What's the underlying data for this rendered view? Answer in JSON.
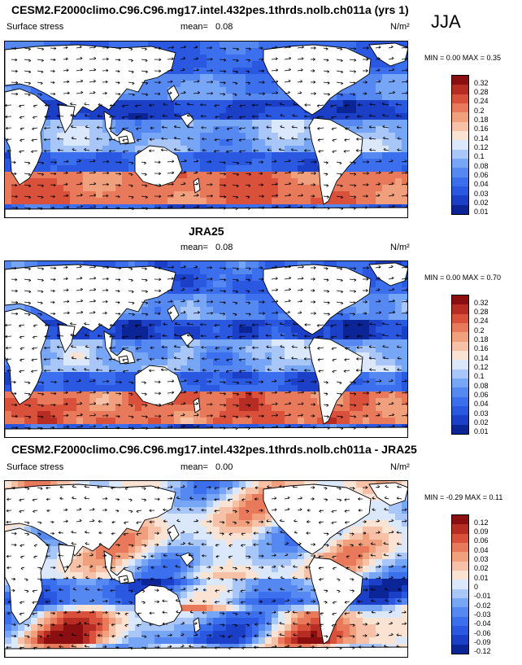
{
  "season": "JJA",
  "panels": [
    {
      "id": "model",
      "title": "CESM2.F2000climo.C96.C96.mg17.intel.432pes.1thrds.nolb.ch011a (yrs 1)",
      "variable": "Surface stress",
      "mean_label": "mean=",
      "mean_value": "0.08",
      "units": "N/m²",
      "minmax": "MIN =   0.00 MAX =   0.35"
    },
    {
      "id": "obs",
      "title": "JRA25",
      "variable": "",
      "mean_label": "mean=",
      "mean_value": "0.08",
      "units": "N/m²",
      "minmax": "MIN =   0.00 MAX =   0.70"
    },
    {
      "id": "diff",
      "title": "CESM2.F2000climo.C96.C96.mg17.intel.432pes.1thrds.nolb.ch011a - JRA25",
      "variable": "Surface stress",
      "mean_label": "mean=",
      "mean_value": "0.00",
      "units": "N/m²",
      "minmax": "MIN = -0.29 MAX =  0.11"
    }
  ],
  "chart_data": [
    {
      "type": "heatmap",
      "title": "CESM2.F2000climo.C96.C96.mg17.intel.432pes.1thrds.nolb.ch011a (yrs 1)",
      "subtitle": "Surface stress",
      "units": "N/m2",
      "mean": 0.08,
      "min": 0.0,
      "max": 0.35,
      "levels": [
        "0.01",
        "0.02",
        "0.03",
        "0.04",
        "0.06",
        "0.08",
        "0.1",
        "0.12",
        "0.14",
        "0.16",
        "0.18",
        "0.2",
        "0.24",
        "0.28",
        "0.32"
      ]
    },
    {
      "type": "heatmap",
      "title": "JRA25",
      "subtitle": "Surface stress",
      "units": "N/m2",
      "mean": 0.08,
      "min": 0.0,
      "max": 0.7,
      "levels": [
        "0.01",
        "0.02",
        "0.03",
        "0.04",
        "0.06",
        "0.08",
        "0.1",
        "0.12",
        "0.14",
        "0.16",
        "0.18",
        "0.2",
        "0.24",
        "0.28",
        "0.32"
      ]
    },
    {
      "type": "heatmap",
      "title": "CESM2.F2000climo.C96.C96.mg17.intel.432pes.1thrds.nolb.ch011a - JRA25",
      "subtitle": "Surface stress",
      "units": "N/m2",
      "mean": 0.0,
      "min": -0.29,
      "max": 0.11,
      "levels": [
        "-0.12",
        "-0.09",
        "-0.06",
        "-0.04",
        "-0.03",
        "-0.02",
        "-0.01",
        "0",
        "0.01",
        "0.02",
        "0.03",
        "0.04",
        "0.06",
        "0.09",
        "0.12"
      ]
    }
  ],
  "colors": {
    "scale": [
      "#0b2496",
      "#1b3fc6",
      "#2a58e0",
      "#3c6fee",
      "#5688f2",
      "#78a6f6",
      "#a8c6f8",
      "#dbe7fb",
      "#fbe3d3",
      "#f6c1a6",
      "#f0a07d",
      "#e8795a",
      "#d9503b",
      "#b72d24",
      "#8b0f10"
    ],
    "land": "#ffffff",
    "coast": "#000000"
  }
}
